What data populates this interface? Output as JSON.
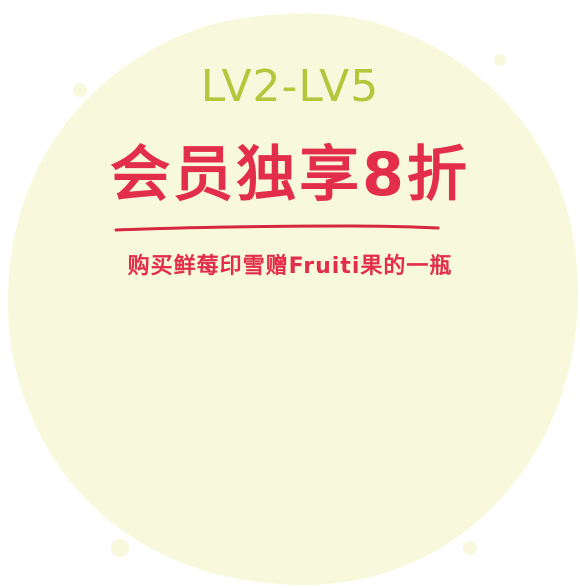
{
  "badge": {
    "level_range": "LV2-LV5",
    "headline": "会员独享8折",
    "subline": "购买鲜莓印雪赠Fruiti果的一瓶"
  },
  "colors": {
    "circle_fill": "#f8f9dc",
    "level_text": "#b2c73b",
    "headline_text": "#e22e4a",
    "underline": "#d8283f",
    "subline_text": "#e22e4a"
  }
}
